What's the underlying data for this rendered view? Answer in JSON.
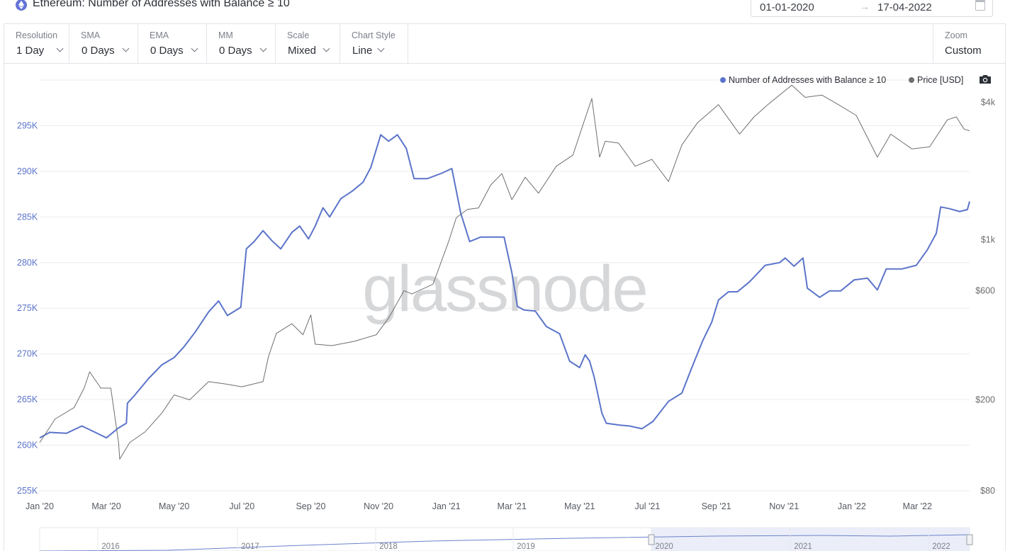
{
  "header": {
    "title": "Ethereum: Number of Addresses with Balance ≥ 10",
    "date_from": "01-01-2020",
    "date_arrow": "→",
    "date_to": "17-04-2022"
  },
  "controls": [
    {
      "key": "resolution",
      "label": "Resolution",
      "value": "1 Day"
    },
    {
      "key": "sma",
      "label": "SMA",
      "value": "0 Days"
    },
    {
      "key": "ema",
      "label": "EMA",
      "value": "0 Days"
    },
    {
      "key": "mm",
      "label": "MM",
      "value": "0 Days"
    },
    {
      "key": "scale",
      "label": "Scale",
      "value": "Mixed"
    },
    {
      "key": "chart-style",
      "label": "Chart Style",
      "value": "Line"
    }
  ],
  "zoom": {
    "label": "Zoom",
    "value": "Custom"
  },
  "watermark": "glassnode",
  "colors": {
    "addresses": "#5b74c9",
    "price": "#6f6f6f",
    "grid": "#ececec",
    "left_axis_text": "#5b74c9",
    "right_axis_text": "#6d6d6d"
  },
  "chart_data": {
    "type": "line",
    "title": "Ethereum: Number of Addresses with Balance ≥ 10",
    "legend": {
      "placement": "top-right",
      "entries": [
        {
          "name": "Number of Addresses with Balance ≥ 10",
          "color": "#5b74c9"
        },
        {
          "name": "Price [USD]",
          "color": "#6f6f6f"
        }
      ]
    },
    "x_range": [
      "2020-01-01",
      "2022-04-17"
    ],
    "x_ticks": [
      {
        "date": "2020-01-01",
        "label": "Jan '20"
      },
      {
        "date": "2020-03-01",
        "label": "Mar '20"
      },
      {
        "date": "2020-05-01",
        "label": "May '20"
      },
      {
        "date": "2020-07-01",
        "label": "Jul '20"
      },
      {
        "date": "2020-09-01",
        "label": "Sep '20"
      },
      {
        "date": "2020-11-01",
        "label": "Nov '20"
      },
      {
        "date": "2021-01-01",
        "label": "Jan '21"
      },
      {
        "date": "2021-03-01",
        "label": "Mar '21"
      },
      {
        "date": "2021-05-01",
        "label": "May '21"
      },
      {
        "date": "2021-07-01",
        "label": "Jul '21"
      },
      {
        "date": "2021-09-01",
        "label": "Sep '21"
      },
      {
        "date": "2021-11-01",
        "label": "Nov '21"
      },
      {
        "date": "2022-01-01",
        "label": "Jan '22"
      },
      {
        "date": "2022-03-01",
        "label": "Mar '22"
      }
    ],
    "y_left": {
      "scale": "linear",
      "range": [
        255000,
        300000
      ],
      "ticks": [
        {
          "value": 255000,
          "label": "255K"
        },
        {
          "value": 260000,
          "label": "260K"
        },
        {
          "value": 265000,
          "label": "265K"
        },
        {
          "value": 270000,
          "label": "270K"
        },
        {
          "value": 275000,
          "label": "275K"
        },
        {
          "value": 280000,
          "label": "280K"
        },
        {
          "value": 285000,
          "label": "285K"
        },
        {
          "value": 290000,
          "label": "290K"
        },
        {
          "value": 295000,
          "label": "295K"
        }
      ]
    },
    "y_right": {
      "scale": "log",
      "range": [
        80,
        5000
      ],
      "ticks": [
        {
          "value": 80,
          "label": "$80"
        },
        {
          "value": 200,
          "label": "$200"
        },
        {
          "value": 600,
          "label": "$600"
        },
        {
          "value": 1000,
          "label": "$1k"
        },
        {
          "value": 4000,
          "label": "$4k"
        }
      ]
    },
    "grid": true,
    "series": [
      {
        "name": "Number of Addresses with Balance ≥ 10",
        "axis": "left",
        "points": [
          [
            "2020-01-01",
            260800
          ],
          [
            "2020-01-10",
            261400
          ],
          [
            "2020-01-25",
            261300
          ],
          [
            "2020-02-08",
            262100
          ],
          [
            "2020-02-20",
            261400
          ],
          [
            "2020-03-01",
            260800
          ],
          [
            "2020-03-12",
            261900
          ],
          [
            "2020-03-19",
            262400
          ],
          [
            "2020-03-20",
            264600
          ],
          [
            "2020-03-26",
            265400
          ],
          [
            "2020-04-08",
            267300
          ],
          [
            "2020-04-20",
            268800
          ],
          [
            "2020-05-01",
            269600
          ],
          [
            "2020-05-10",
            270800
          ],
          [
            "2020-05-20",
            272400
          ],
          [
            "2020-06-01",
            274600
          ],
          [
            "2020-06-10",
            275800
          ],
          [
            "2020-06-18",
            274200
          ],
          [
            "2020-06-30",
            275100
          ],
          [
            "2020-07-05",
            281500
          ],
          [
            "2020-07-12",
            282300
          ],
          [
            "2020-07-20",
            283500
          ],
          [
            "2020-07-28",
            282400
          ],
          [
            "2020-08-05",
            281500
          ],
          [
            "2020-08-15",
            283300
          ],
          [
            "2020-08-22",
            284000
          ],
          [
            "2020-08-30",
            282600
          ],
          [
            "2020-09-05",
            284000
          ],
          [
            "2020-09-12",
            286000
          ],
          [
            "2020-09-18",
            285000
          ],
          [
            "2020-09-28",
            287000
          ],
          [
            "2020-10-08",
            287800
          ],
          [
            "2020-10-18",
            288800
          ],
          [
            "2020-10-25",
            290400
          ],
          [
            "2020-11-03",
            294000
          ],
          [
            "2020-11-10",
            293300
          ],
          [
            "2020-11-18",
            294000
          ],
          [
            "2020-11-26",
            292500
          ],
          [
            "2020-12-03",
            289200
          ],
          [
            "2020-12-15",
            289200
          ],
          [
            "2020-12-28",
            289800
          ],
          [
            "2021-01-06",
            290300
          ],
          [
            "2021-01-14",
            285400
          ],
          [
            "2021-01-22",
            282300
          ],
          [
            "2021-02-01",
            282800
          ],
          [
            "2021-02-15",
            282800
          ],
          [
            "2021-02-22",
            282800
          ],
          [
            "2021-03-01",
            278900
          ],
          [
            "2021-03-06",
            275200
          ],
          [
            "2021-03-12",
            274800
          ],
          [
            "2021-03-22",
            274700
          ],
          [
            "2021-04-01",
            273000
          ],
          [
            "2021-04-13",
            272200
          ],
          [
            "2021-04-22",
            269200
          ],
          [
            "2021-05-01",
            268500
          ],
          [
            "2021-05-06",
            269900
          ],
          [
            "2021-05-10",
            269200
          ],
          [
            "2021-05-14",
            267500
          ],
          [
            "2021-05-21",
            263500
          ],
          [
            "2021-05-25",
            262400
          ],
          [
            "2021-06-06",
            262200
          ],
          [
            "2021-06-15",
            262100
          ],
          [
            "2021-06-26",
            261800
          ],
          [
            "2021-07-06",
            262600
          ],
          [
            "2021-07-20",
            264800
          ],
          [
            "2021-08-01",
            265700
          ],
          [
            "2021-08-10",
            268500
          ],
          [
            "2021-08-20",
            271500
          ],
          [
            "2021-08-28",
            273500
          ],
          [
            "2021-09-03",
            275900
          ],
          [
            "2021-09-12",
            276800
          ],
          [
            "2021-09-20",
            276800
          ],
          [
            "2021-10-01",
            277900
          ],
          [
            "2021-10-15",
            279700
          ],
          [
            "2021-10-28",
            280000
          ],
          [
            "2021-11-02",
            280500
          ],
          [
            "2021-11-10",
            279600
          ],
          [
            "2021-11-18",
            280500
          ],
          [
            "2021-11-22",
            277200
          ],
          [
            "2021-12-03",
            276200
          ],
          [
            "2021-12-12",
            276900
          ],
          [
            "2021-12-22",
            276900
          ],
          [
            "2022-01-03",
            278100
          ],
          [
            "2022-01-15",
            278300
          ],
          [
            "2022-01-24",
            277000
          ],
          [
            "2022-02-01",
            279300
          ],
          [
            "2022-02-15",
            279300
          ],
          [
            "2022-02-28",
            279700
          ],
          [
            "2022-03-10",
            281400
          ],
          [
            "2022-03-18",
            283200
          ],
          [
            "2022-03-22",
            286100
          ],
          [
            "2022-03-30",
            285900
          ],
          [
            "2022-04-08",
            285600
          ],
          [
            "2022-04-15",
            285800
          ],
          [
            "2022-04-17",
            286700
          ]
        ]
      },
      {
        "name": "Price [USD]",
        "axis": "right",
        "points": [
          [
            "2020-01-01",
            130
          ],
          [
            "2020-01-15",
            165
          ],
          [
            "2020-02-01",
            185
          ],
          [
            "2020-02-10",
            225
          ],
          [
            "2020-02-15",
            265
          ],
          [
            "2020-02-25",
            225
          ],
          [
            "2020-03-05",
            225
          ],
          [
            "2020-03-12",
            130
          ],
          [
            "2020-03-13",
            110
          ],
          [
            "2020-03-22",
            130
          ],
          [
            "2020-04-05",
            145
          ],
          [
            "2020-04-20",
            175
          ],
          [
            "2020-05-01",
            210
          ],
          [
            "2020-05-15",
            200
          ],
          [
            "2020-06-01",
            240
          ],
          [
            "2020-06-15",
            235
          ],
          [
            "2020-07-01",
            228
          ],
          [
            "2020-07-20",
            240
          ],
          [
            "2020-07-25",
            310
          ],
          [
            "2020-08-01",
            390
          ],
          [
            "2020-08-15",
            430
          ],
          [
            "2020-08-25",
            385
          ],
          [
            "2020-09-01",
            470
          ],
          [
            "2020-09-05",
            350
          ],
          [
            "2020-09-20",
            345
          ],
          [
            "2020-10-10",
            360
          ],
          [
            "2020-10-30",
            385
          ],
          [
            "2020-11-10",
            455
          ],
          [
            "2020-11-24",
            600
          ],
          [
            "2020-12-01",
            580
          ],
          [
            "2020-12-20",
            640
          ],
          [
            "2021-01-03",
            980
          ],
          [
            "2021-01-10",
            1250
          ],
          [
            "2021-01-20",
            1360
          ],
          [
            "2021-01-30",
            1380
          ],
          [
            "2021-02-10",
            1740
          ],
          [
            "2021-02-20",
            1950
          ],
          [
            "2021-03-01",
            1500
          ],
          [
            "2021-03-13",
            1880
          ],
          [
            "2021-03-25",
            1600
          ],
          [
            "2021-04-10",
            2100
          ],
          [
            "2021-04-25",
            2350
          ],
          [
            "2021-05-05",
            3300
          ],
          [
            "2021-05-12",
            4150
          ],
          [
            "2021-05-19",
            2300
          ],
          [
            "2021-05-24",
            2700
          ],
          [
            "2021-06-05",
            2650
          ],
          [
            "2021-06-20",
            2100
          ],
          [
            "2021-07-05",
            2250
          ],
          [
            "2021-07-20",
            1800
          ],
          [
            "2021-08-01",
            2600
          ],
          [
            "2021-08-15",
            3250
          ],
          [
            "2021-09-03",
            3900
          ],
          [
            "2021-09-22",
            2900
          ],
          [
            "2021-10-05",
            3450
          ],
          [
            "2021-10-20",
            4000
          ],
          [
            "2021-11-08",
            4750
          ],
          [
            "2021-11-20",
            4200
          ],
          [
            "2021-12-05",
            4300
          ],
          [
            "2021-12-20",
            3900
          ],
          [
            "2022-01-05",
            3500
          ],
          [
            "2022-01-24",
            2300
          ],
          [
            "2022-02-05",
            2900
          ],
          [
            "2022-02-24",
            2500
          ],
          [
            "2022-03-12",
            2550
          ],
          [
            "2022-03-28",
            3350
          ],
          [
            "2022-04-05",
            3450
          ],
          [
            "2022-04-12",
            3050
          ],
          [
            "2022-04-17",
            3000
          ]
        ]
      }
    ],
    "navigator": {
      "year_labels": [
        "2016",
        "2017",
        "2018",
        "2019",
        "2020",
        "2021",
        "2022"
      ],
      "selected": [
        "2020-01-01",
        "2022-04-17"
      ]
    }
  }
}
